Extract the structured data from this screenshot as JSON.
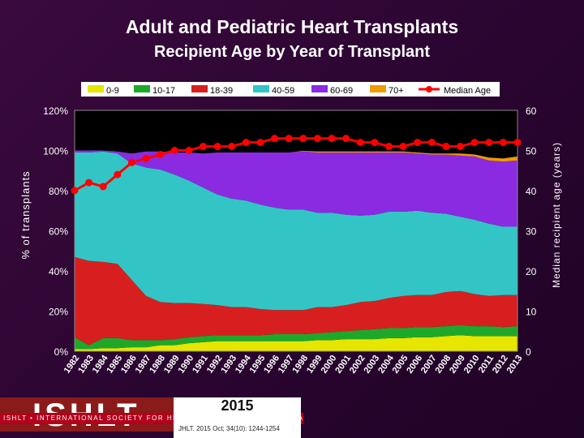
{
  "title": "Adult and Pediatric Heart Transplants",
  "subtitle": "Recipient Age by Year of Transplant",
  "footer": {
    "logo": "ISHLT",
    "society": "ISHLT • INTERNATIONAL SOCIETY FOR HEART AND LUNG TRANSPLANTATION",
    "year": "2015",
    "citation": "JHLT. 2015 Oct; 34(10): 1244-1254"
  },
  "colors": {
    "s0_9": "#e6e600",
    "s10_17": "#1ea82a",
    "s18_39": "#d81f1f",
    "s40_59": "#33c5c5",
    "s60_69": "#8a2be2",
    "s70": "#f29b00",
    "median": "#ff0000"
  },
  "chart_data": {
    "type": "area",
    "title": "Adult and Pediatric Heart Transplants",
    "subtitle": "Recipient Age by Year of Transplant",
    "ylabel": "% of transplants",
    "y2label": "Median recipient age (years)",
    "ylim": [
      0,
      120
    ],
    "y2lim": [
      0,
      60
    ],
    "yticks": [
      "0%",
      "20%",
      "40%",
      "60%",
      "80%",
      "100%",
      "120%"
    ],
    "y2ticks": [
      "0",
      "10",
      "20",
      "30",
      "40",
      "50",
      "60"
    ],
    "x": [
      "1982",
      "1983",
      "1984",
      "1985",
      "1986",
      "1987",
      "1988",
      "1989",
      "1990",
      "1991",
      "1992",
      "1993",
      "1994",
      "1995",
      "1996",
      "1997",
      "1998",
      "1999",
      "2000",
      "2001",
      "2002",
      "2003",
      "2004",
      "2005",
      "2006",
      "2007",
      "2008",
      "2009",
      "2010",
      "2011",
      "2012",
      "2013"
    ],
    "legend": [
      "0-9",
      "10-17",
      "18-39",
      "40-59",
      "60-69",
      "70+",
      "Median Age"
    ],
    "series": [
      {
        "name": "0-9",
        "values": [
          1,
          1,
          1.5,
          1.5,
          2,
          2,
          3,
          3,
          4,
          4.5,
          5,
          5,
          5,
          5,
          5,
          5,
          5,
          5.5,
          5.5,
          6,
          6,
          6,
          6.5,
          6.5,
          7,
          7,
          7.5,
          8,
          7.5,
          7.5,
          7.5,
          7.5
        ]
      },
      {
        "name": "10-17",
        "values": [
          6,
          2,
          5,
          5,
          3.5,
          3.5,
          2.5,
          3,
          3,
          3,
          3,
          3,
          3,
          3,
          3.5,
          3.5,
          3.5,
          3.5,
          4,
          4,
          4.5,
          5,
          5,
          5,
          5,
          5,
          5,
          5,
          5,
          5,
          4.5,
          5
        ]
      },
      {
        "name": "18-39",
        "values": [
          40,
          42,
          38,
          37,
          30,
          22,
          19,
          18,
          17,
          16,
          15,
          14,
          14,
          13,
          12,
          12,
          12,
          13,
          12.5,
          13,
          14,
          14,
          15,
          16,
          16,
          16,
          17,
          17,
          16,
          15,
          16,
          15.5
        ]
      },
      {
        "name": "40-59",
        "values": [
          52,
          54,
          55,
          55,
          58,
          64,
          66,
          64,
          61,
          58,
          55,
          54,
          53,
          52,
          51,
          50,
          50,
          47,
          47,
          45,
          43,
          43,
          43,
          42,
          42,
          41,
          39,
          37,
          37,
          36,
          34,
          34
        ]
      },
      {
        "name": "60-69",
        "values": [
          1,
          1,
          0.5,
          1,
          5,
          8,
          9,
          11,
          14,
          17,
          21,
          23,
          24,
          26,
          27.5,
          28.5,
          29,
          30,
          30,
          31,
          31.5,
          31,
          29.5,
          29.5,
          28.5,
          29,
          29.5,
          30.5,
          31.5,
          31.5,
          32.5,
          33
        ]
      },
      {
        "name": "70+",
        "values": [
          0,
          0,
          0,
          0,
          0,
          0,
          0,
          0,
          0,
          0,
          0,
          0,
          0,
          0,
          0,
          0,
          0.3,
          0.5,
          0.5,
          0.5,
          0.5,
          0.5,
          0.5,
          0.5,
          0.5,
          0.5,
          0.5,
          1,
          1,
          1.5,
          1.5,
          2
        ]
      },
      {
        "name": "Median Age",
        "axis": "right",
        "values": [
          40,
          42,
          41,
          44,
          47,
          48,
          49,
          50,
          50,
          51,
          51,
          51,
          52,
          52,
          53,
          53,
          53,
          53,
          53,
          53,
          52,
          52,
          51,
          51,
          52,
          52,
          51,
          51,
          52,
          52,
          52,
          52
        ]
      }
    ]
  }
}
